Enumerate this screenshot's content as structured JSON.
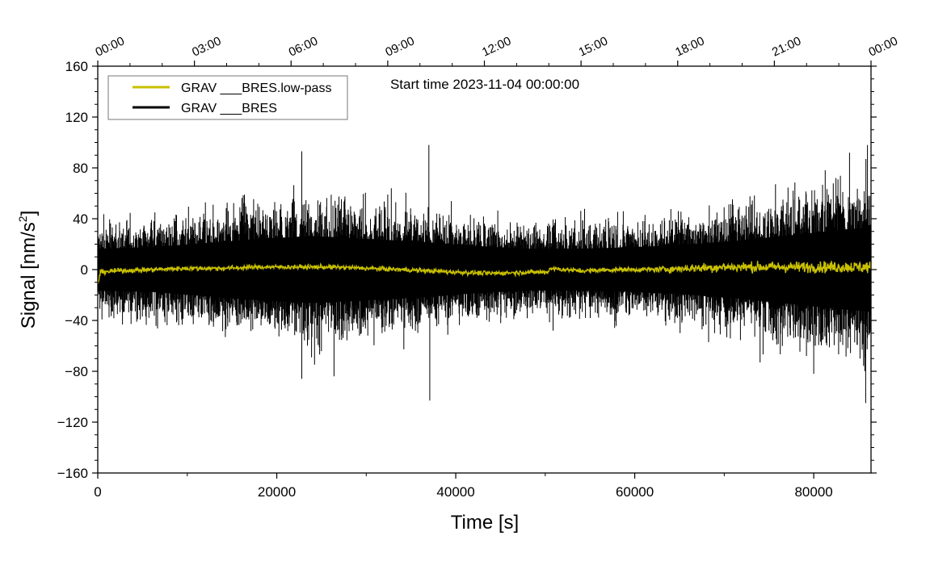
{
  "chart_data": {
    "type": "line",
    "annotation": "Start time 2023-11-04 00:00:00",
    "xlabel": "Time [s]",
    "ylabel_main": "Signal [nm/s",
    "ylabel_sup": "2",
    "ylabel_close": "]",
    "xlim": [
      0,
      86400
    ],
    "ylim": [
      -160,
      160
    ],
    "x_ticks": [
      0,
      20000,
      40000,
      60000,
      80000
    ],
    "x_tick_labels": [
      "0",
      "20000",
      "40000",
      "60000",
      "80000"
    ],
    "y_ticks": [
      -160,
      -120,
      -80,
      -40,
      0,
      40,
      80,
      120,
      160
    ],
    "y_tick_labels": [
      "−160",
      "−120",
      "−80",
      "−40",
      "0",
      "40",
      "80",
      "120",
      "160"
    ],
    "top_ticks": [
      0,
      10800,
      21600,
      32400,
      43200,
      54000,
      64800,
      75600,
      86400
    ],
    "top_tick_labels": [
      "00:00",
      "03:00",
      "06:00",
      "09:00",
      "12:00",
      "15:00",
      "18:00",
      "21:00",
      "00:00"
    ],
    "legend_position": "top-left",
    "series": [
      {
        "name": "GRAV ___BRES.low-pass",
        "color": "#c8c000",
        "points": [
          [
            0,
            -12
          ],
          [
            300,
            -2
          ],
          [
            2000,
            -1
          ],
          [
            6000,
            0
          ],
          [
            10000,
            1
          ],
          [
            14000,
            1
          ],
          [
            18000,
            2
          ],
          [
            22000,
            2
          ],
          [
            26000,
            2
          ],
          [
            30000,
            1
          ],
          [
            34000,
            0
          ],
          [
            37000,
            -1
          ],
          [
            40000,
            -2
          ],
          [
            44000,
            -3
          ],
          [
            48000,
            -2
          ],
          [
            50300,
            -2
          ],
          [
            50500,
            1
          ],
          [
            54000,
            -1
          ],
          [
            58000,
            0
          ],
          [
            62000,
            0
          ],
          [
            66000,
            1
          ],
          [
            70000,
            2
          ],
          [
            74000,
            2
          ],
          [
            78000,
            2
          ],
          [
            82000,
            2
          ],
          [
            86400,
            2
          ]
        ],
        "noise_amplitude": [
          [
            0,
            1.5
          ],
          [
            60000,
            1.5
          ],
          [
            68000,
            3
          ],
          [
            86400,
            4
          ]
        ]
      },
      {
        "name": "GRAV ___BRES",
        "color": "#000000",
        "envelope_x": [
          0,
          6000,
          12000,
          18000,
          24000,
          30000,
          36000,
          42000,
          48000,
          54000,
          60000,
          66000,
          72000,
          78000,
          84000,
          86400
        ],
        "envelope_upper": [
          30,
          32,
          38,
          44,
          48,
          44,
          40,
          34,
          30,
          30,
          32,
          36,
          42,
          50,
          58,
          60
        ],
        "envelope_lower": [
          -30,
          -32,
          -38,
          -44,
          -48,
          -44,
          -40,
          -34,
          -30,
          -30,
          -32,
          -36,
          -42,
          -50,
          -58,
          -60
        ],
        "peaks": [
          [
            22800,
            93
          ],
          [
            22800,
            -86
          ],
          [
            37000,
            98
          ],
          [
            37100,
            -103
          ],
          [
            26400,
            -84
          ],
          [
            74000,
            -73
          ],
          [
            80000,
            -82
          ],
          [
            84000,
            92
          ],
          [
            86000,
            98
          ],
          [
            85800,
            -105
          ]
        ]
      }
    ]
  }
}
